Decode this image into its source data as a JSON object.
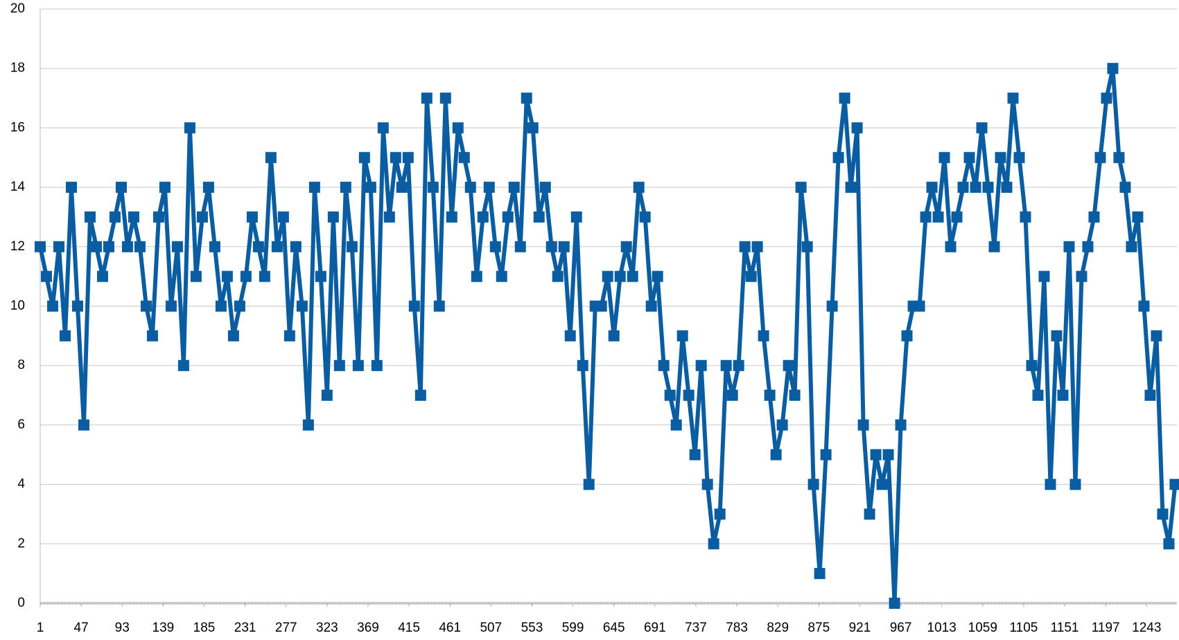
{
  "chart_data": {
    "type": "line",
    "color": "#0b5da2",
    "grid": true,
    "xlim": [
      1,
      1277
    ],
    "xticks": [
      1,
      47,
      93,
      139,
      185,
      231,
      277,
      323,
      369,
      415,
      461,
      507,
      553,
      599,
      645,
      691,
      737,
      783,
      829,
      875,
      921,
      967,
      1013,
      1059,
      1105,
      1151,
      1197,
      1243
    ],
    "ylim": [
      0,
      20
    ],
    "yticks": [
      0,
      2,
      4,
      6,
      8,
      10,
      12,
      14,
      16,
      18,
      20
    ],
    "x": [
      1,
      8,
      15,
      22,
      29,
      36,
      43,
      50,
      57,
      64,
      71,
      78,
      85,
      92,
      99,
      106,
      113,
      120,
      127,
      134,
      141,
      148,
      155,
      162,
      169,
      176,
      183,
      190,
      197,
      204,
      211,
      218,
      225,
      232,
      239,
      246,
      253,
      260,
      267,
      274,
      281,
      288,
      295,
      302,
      309,
      316,
      323,
      330,
      337,
      344,
      351,
      358,
      365,
      372,
      379,
      386,
      393,
      400,
      407,
      414,
      421,
      428,
      435,
      442,
      449,
      456,
      463,
      470,
      477,
      484,
      491,
      498,
      505,
      512,
      519,
      526,
      533,
      540,
      547,
      554,
      561,
      568,
      575,
      582,
      589,
      596,
      603,
      610,
      617,
      624,
      631,
      638,
      645,
      652,
      659,
      666,
      673,
      680,
      687,
      694,
      701,
      708,
      715,
      722,
      729,
      736,
      743,
      750,
      757,
      764,
      771,
      778,
      785,
      792,
      799,
      806,
      813,
      820,
      827,
      834,
      841,
      848,
      855,
      862,
      869,
      876,
      883,
      890,
      897,
      904,
      911,
      918,
      925,
      932,
      939,
      946,
      953,
      960,
      967,
      974,
      981,
      988,
      995,
      1002,
      1009,
      1016,
      1023,
      1030,
      1037,
      1044,
      1051,
      1058,
      1065,
      1072,
      1079,
      1086,
      1093,
      1100,
      1107,
      1114,
      1121,
      1128,
      1135,
      1142,
      1149,
      1156,
      1163,
      1170,
      1177,
      1184,
      1191,
      1198,
      1205,
      1212,
      1219,
      1226,
      1233,
      1240,
      1247,
      1254,
      1261,
      1268,
      1275
    ],
    "values": [
      12,
      11,
      10,
      12,
      9,
      14,
      10,
      6,
      13,
      12,
      11,
      12,
      13,
      14,
      12,
      13,
      12,
      10,
      9,
      13,
      14,
      10,
      12,
      8,
      16,
      11,
      13,
      14,
      12,
      10,
      11,
      9,
      10,
      11,
      13,
      12,
      11,
      15,
      12,
      13,
      9,
      12,
      10,
      6,
      14,
      11,
      7,
      13,
      8,
      14,
      12,
      8,
      15,
      14,
      8,
      16,
      13,
      15,
      14,
      15,
      10,
      7,
      17,
      14,
      10,
      17,
      13,
      16,
      15,
      14,
      11,
      13,
      14,
      12,
      11,
      13,
      14,
      12,
      17,
      16,
      13,
      14,
      12,
      11,
      12,
      9,
      13,
      8,
      4,
      10,
      10,
      11,
      9,
      11,
      12,
      11,
      14,
      13,
      10,
      11,
      8,
      7,
      6,
      9,
      7,
      5,
      8,
      4,
      2,
      3,
      8,
      7,
      8,
      12,
      11,
      12,
      9,
      7,
      5,
      6,
      8,
      7,
      14,
      12,
      4,
      1,
      5,
      10,
      15,
      17,
      14,
      16,
      6,
      3,
      5,
      4,
      5,
      0,
      6,
      9,
      10,
      10,
      13,
      14,
      13,
      15,
      12,
      13,
      14,
      15,
      14,
      16,
      14,
      12,
      15,
      14,
      17,
      15,
      13,
      8,
      7,
      11,
      4,
      9,
      7,
      12,
      4,
      11,
      12,
      13,
      15,
      17,
      18,
      15,
      14,
      12,
      13,
      10,
      7,
      9,
      3,
      2,
      4
    ]
  }
}
